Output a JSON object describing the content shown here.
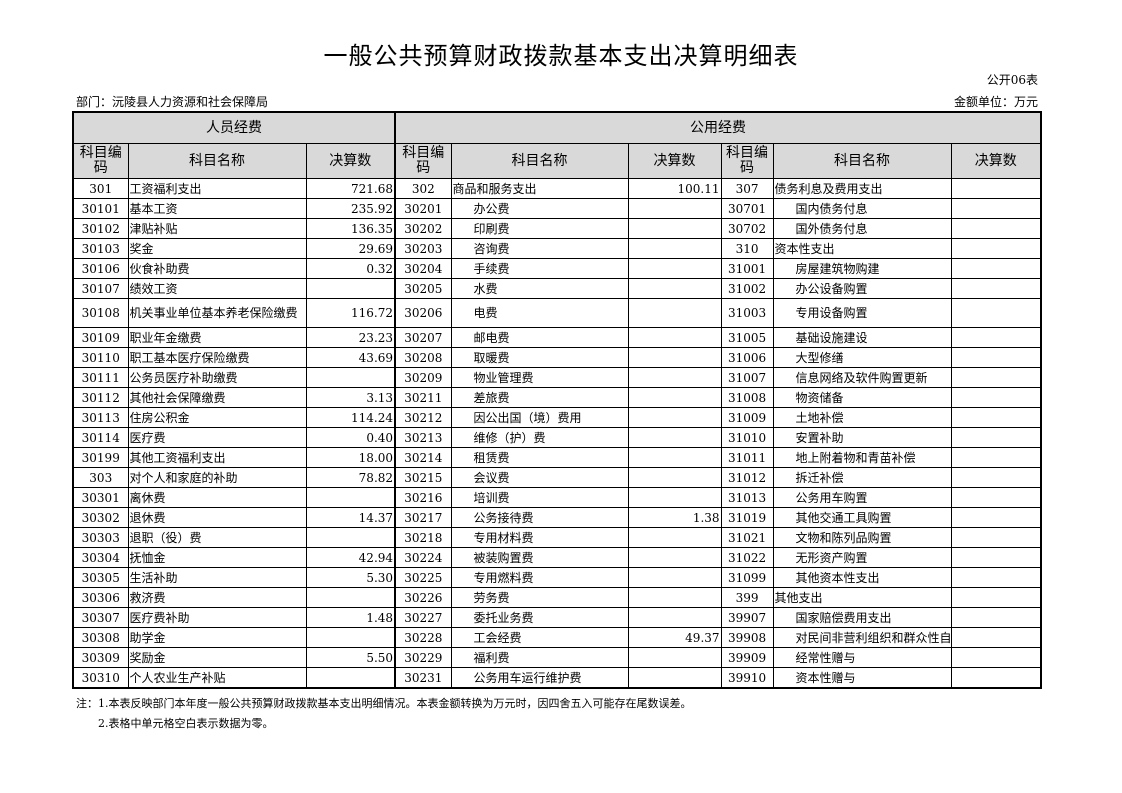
{
  "title": "一般公共预算财政拨款基本支出决算明细表",
  "table_no": "公开06表",
  "department": "部门：沅陵县人力资源和社会保障局",
  "unit": "金额单位：万元",
  "headers": {
    "group1": "人员经费",
    "group2": "公用经费",
    "code": "科目编码",
    "name": "科目名称",
    "amount": "决算数"
  },
  "rows": [
    [
      "301",
      "工资福利支出",
      "721.68",
      "302",
      "商品和服务支出",
      "100.11",
      "307",
      "债务利息及费用支出",
      ""
    ],
    [
      "30101",
      "基本工资",
      "235.92",
      "30201",
      "办公费",
      "",
      "30701",
      "国内债务付息",
      ""
    ],
    [
      "30102",
      "津贴补贴",
      "136.35",
      "30202",
      "印刷费",
      "",
      "30702",
      "国外债务付息",
      ""
    ],
    [
      "30103",
      "奖金",
      "29.69",
      "30203",
      "咨询费",
      "",
      "310",
      "资本性支出",
      ""
    ],
    [
      "30106",
      "伙食补助费",
      "0.32",
      "30204",
      "手续费",
      "",
      "31001",
      "房屋建筑物购建",
      ""
    ],
    [
      "30107",
      "绩效工资",
      "",
      "30205",
      "水费",
      "",
      "31002",
      "办公设备购置",
      ""
    ],
    [
      "30108",
      "机关事业单位基本养老保险缴费",
      "116.72",
      "30206",
      "电费",
      "",
      "31003",
      "专用设备购置",
      ""
    ],
    [
      "30109",
      "职业年金缴费",
      "23.23",
      "30207",
      "邮电费",
      "",
      "31005",
      "基础设施建设",
      ""
    ],
    [
      "30110",
      "职工基本医疗保险缴费",
      "43.69",
      "30208",
      "取暖费",
      "",
      "31006",
      "大型修缮",
      ""
    ],
    [
      "30111",
      "公务员医疗补助缴费",
      "",
      "30209",
      "物业管理费",
      "",
      "31007",
      "信息网络及软件购置更新",
      ""
    ],
    [
      "30112",
      "其他社会保障缴费",
      "3.13",
      "30211",
      "差旅费",
      "",
      "31008",
      "物资储备",
      ""
    ],
    [
      "30113",
      "住房公积金",
      "114.24",
      "30212",
      "因公出国（境）费用",
      "",
      "31009",
      "土地补偿",
      ""
    ],
    [
      "30114",
      "医疗费",
      "0.40",
      "30213",
      "维修（护）费",
      "",
      "31010",
      "安置补助",
      ""
    ],
    [
      "30199",
      "其他工资福利支出",
      "18.00",
      "30214",
      "租赁费",
      "",
      "31011",
      "地上附着物和青苗补偿",
      ""
    ],
    [
      "303",
      "对个人和家庭的补助",
      "78.82",
      "30215",
      "会议费",
      "",
      "31012",
      "拆迁补偿",
      ""
    ],
    [
      "30301",
      "离休费",
      "",
      "30216",
      "培训费",
      "",
      "31013",
      "公务用车购置",
      ""
    ],
    [
      "30302",
      "退休费",
      "14.37",
      "30217",
      "公务接待费",
      "1.38",
      "31019",
      "其他交通工具购置",
      ""
    ],
    [
      "30303",
      "退职（役）费",
      "",
      "30218",
      "专用材料费",
      "",
      "31021",
      "文物和陈列品购置",
      ""
    ],
    [
      "30304",
      "抚恤金",
      "42.94",
      "30224",
      "被装购置费",
      "",
      "31022",
      "无形资产购置",
      ""
    ],
    [
      "30305",
      "生活补助",
      "5.30",
      "30225",
      "专用燃料费",
      "",
      "31099",
      "其他资本性支出",
      ""
    ],
    [
      "30306",
      "救济费",
      "",
      "30226",
      "劳务费",
      "",
      "399",
      "其他支出",
      ""
    ],
    [
      "30307",
      "医疗费补助",
      "1.48",
      "30227",
      "委托业务费",
      "",
      "39907",
      "国家赔偿费用支出",
      ""
    ],
    [
      "30308",
      "助学金",
      "",
      "30228",
      "工会经费",
      "49.37",
      "39908",
      "对民间非营利组织和群众性自",
      ""
    ],
    [
      "30309",
      "奖励金",
      "5.50",
      "30229",
      "福利费",
      "",
      "39909",
      "经常性赠与",
      ""
    ],
    [
      "30310",
      "个人农业生产补贴",
      "",
      "30231",
      "公务用车运行维护费",
      "",
      "39910",
      "资本性赠与",
      ""
    ]
  ],
  "notes": [
    "注：1.本表反映部门本年度一般公共预算财政拨款基本支出明细情况。本表金额转换为万元时，因四舍五入可能存在尾数误差。",
    "　　2.表格中单元格空白表示数据为零。"
  ]
}
